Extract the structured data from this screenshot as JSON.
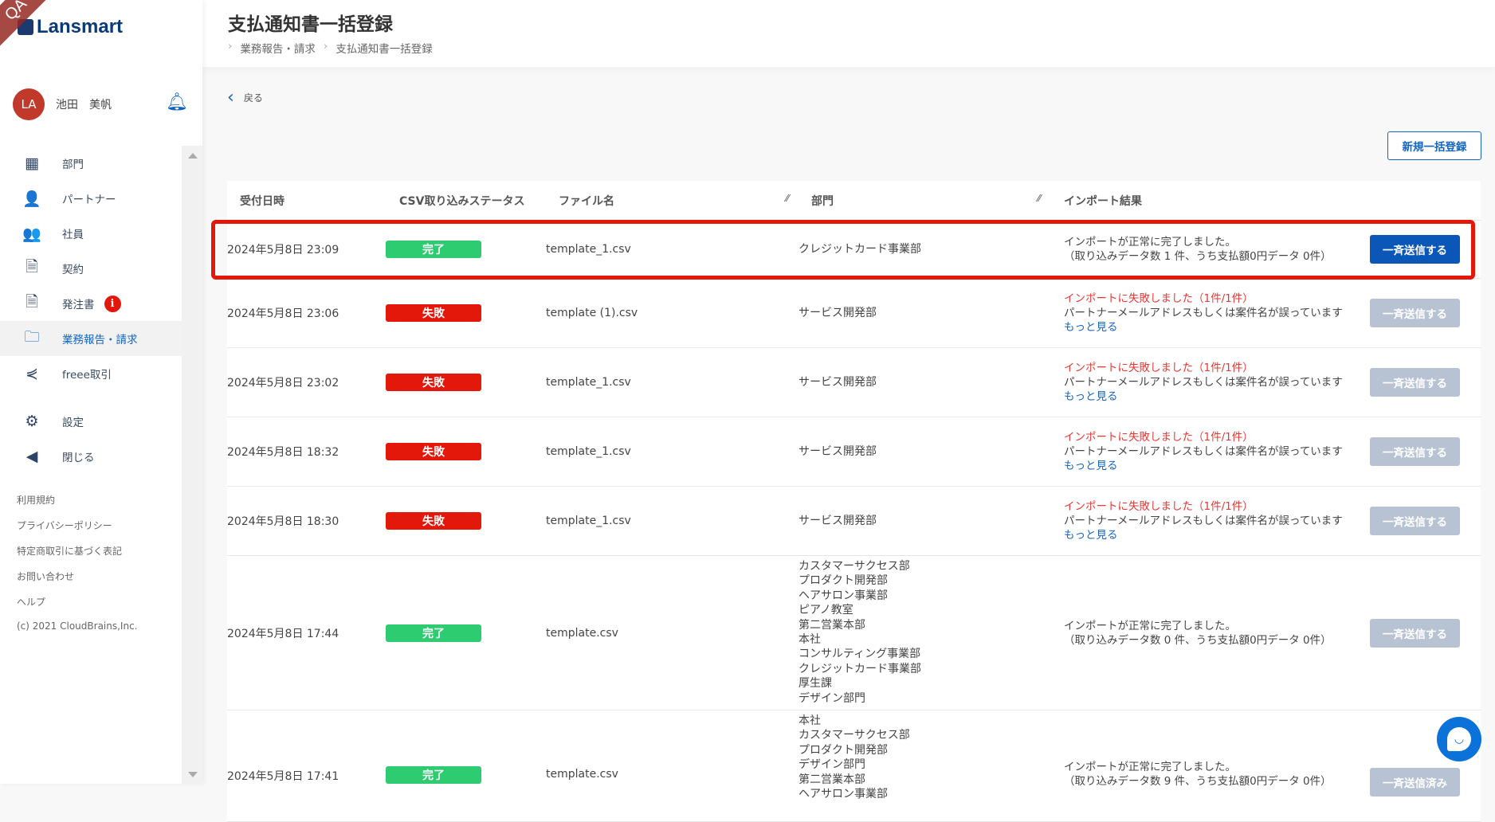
{
  "brand": {
    "name": "Lansmart",
    "ribbon": "QA"
  },
  "user": {
    "initials": "LA",
    "name": "池田　美帆"
  },
  "sidebar": {
    "items": [
      {
        "label": "部門",
        "icon": "building-icon",
        "glyph": "▦"
      },
      {
        "label": "パートナー",
        "icon": "person-icon",
        "glyph": "👤"
      },
      {
        "label": "社員",
        "icon": "people-icon",
        "glyph": "👥"
      },
      {
        "label": "契約",
        "icon": "document-icon",
        "glyph": "🗎"
      },
      {
        "label": "発注書",
        "icon": "document-icon",
        "glyph": "🗎",
        "badge": "i"
      },
      {
        "label": "業務報告・請求",
        "icon": "folder-icon",
        "glyph": "🗀",
        "active": true
      },
      {
        "label": "freee取引",
        "icon": "freee-icon",
        "glyph": "⋞"
      },
      {
        "label": "設定",
        "icon": "gear-icon",
        "glyph": "⚙"
      },
      {
        "label": "閉じる",
        "icon": "back-circle-icon",
        "glyph": "◀"
      }
    ],
    "footer": [
      "利用規約",
      "プライバシーポリシー",
      "特定商取引に基づく表記",
      "お問い合わせ",
      "ヘルプ",
      "(c) 2021 CloudBrains,Inc."
    ]
  },
  "header": {
    "title": "支払通知書一括登録",
    "breadcrumbs": [
      "業務報告・請求",
      "支払通知書一括登録"
    ]
  },
  "back_label": "戻る",
  "new_button": "新規一括登録",
  "table": {
    "columns": [
      "受付日時",
      "CSV取り込みステータス",
      "ファイル名",
      "部門",
      "インポート結果"
    ],
    "rows": [
      {
        "date": "2024年5月8日 23:09",
        "status": "完了",
        "file": "template_1.csv",
        "depts": [
          "クレジットカード事業部"
        ],
        "result": [
          "インポートが正常に完了しました。",
          "（取り込みデータ数 1 件、うち支払額0円データ 0件）"
        ],
        "button": "一斉送信する",
        "button_enabled": true
      },
      {
        "date": "2024年5月8日 23:06",
        "status": "失敗",
        "file": "template (1).csv",
        "depts": [
          "サービス開発部"
        ],
        "error": "インポートに失敗しました（1件/1件）",
        "result": [
          "パートナーメールアドレスもしくは案件名が誤っています"
        ],
        "more": "もっと見る",
        "button": "一斉送信する",
        "button_enabled": false
      },
      {
        "date": "2024年5月8日 23:02",
        "status": "失敗",
        "file": "template_1.csv",
        "depts": [
          "サービス開発部"
        ],
        "error": "インポートに失敗しました（1件/1件）",
        "result": [
          "パートナーメールアドレスもしくは案件名が誤っています"
        ],
        "more": "もっと見る",
        "button": "一斉送信する",
        "button_enabled": false
      },
      {
        "date": "2024年5月8日 18:32",
        "status": "失敗",
        "file": "template_1.csv",
        "depts": [
          "サービス開発部"
        ],
        "error": "インポートに失敗しました（1件/1件）",
        "result": [
          "パートナーメールアドレスもしくは案件名が誤っています"
        ],
        "more": "もっと見る",
        "button": "一斉送信する",
        "button_enabled": false
      },
      {
        "date": "2024年5月8日 18:30",
        "status": "失敗",
        "file": "template_1.csv",
        "depts": [
          "サービス開発部"
        ],
        "error": "インポートに失敗しました（1件/1件）",
        "result": [
          "パートナーメールアドレスもしくは案件名が誤っています"
        ],
        "more": "もっと見る",
        "button": "一斉送信する",
        "button_enabled": false
      },
      {
        "date": "2024年5月8日 17:44",
        "status": "完了",
        "file": "template.csv",
        "depts": [
          "カスタマーサクセス部",
          "プロダクト開発部",
          "ヘアサロン事業部",
          "ピアノ教室",
          "第二営業本部",
          "本社",
          "コンサルティング事業部",
          "クレジットカード事業部",
          "厚生課",
          "デザイン部門"
        ],
        "result": [
          "インポートが正常に完了しました。",
          "（取り込みデータ数 0 件、うち支払額0円データ 0件）"
        ],
        "button": "一斉送信する",
        "button_enabled": false
      },
      {
        "date": "2024年5月8日 17:41",
        "status": "完了",
        "file": "template.csv",
        "depts": [
          "本社",
          "カスタマーサクセス部",
          "プロダクト開発部",
          "デザイン部門",
          "第二営業本部",
          "ヘアサロン事業部"
        ],
        "result": [
          "インポートが正常に完了しました。",
          "（取り込みデータ数 9 件、うち支払額0円データ 0件）"
        ],
        "button": "一斉送信済み",
        "button_enabled": false
      }
    ]
  },
  "colors": {
    "success": "#2ecc71",
    "failure": "#e3170a",
    "primary": "#0b57b8",
    "disabled": "#b7c3d3",
    "highlight": "#e3170a"
  }
}
